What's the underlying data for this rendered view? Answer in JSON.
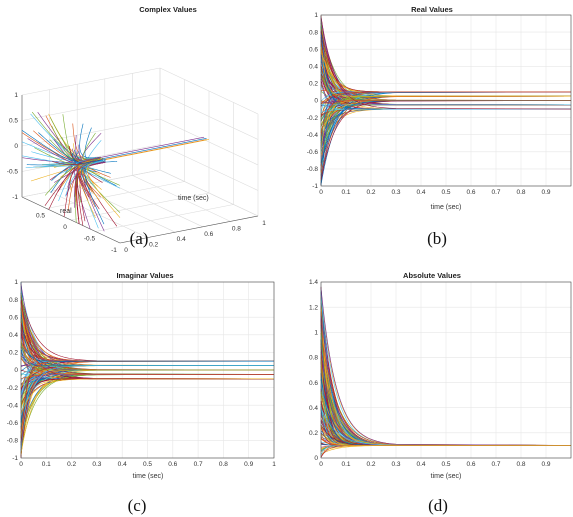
{
  "palette": [
    "#0072BD",
    "#D95319",
    "#EDB120",
    "#7E2F8E",
    "#77AC30",
    "#4DBEEE",
    "#A2142F"
  ],
  "chart_data": [
    {
      "id": "a",
      "type": "line3d",
      "title": "Complex Values",
      "caption": "(a)",
      "xlabel": "real",
      "ylabel": "time (sec)",
      "zlabel": "",
      "xlim": [
        -1,
        1
      ],
      "ylim": [
        0,
        1
      ],
      "zlim": [
        -1,
        1
      ],
      "xticks": [
        "0.5",
        "0",
        "-0.5",
        "-1"
      ],
      "yticks": [
        "0",
        "0.2",
        "0.4",
        "0.6",
        "0.8",
        "1"
      ],
      "zticks": [
        "1",
        "0.5",
        "0",
        "-0.5",
        "-1"
      ],
      "series_count": 120,
      "steady_state_values": [
        0.1,
        0.1,
        0.05,
        0.0
      ],
      "decay_time_constant_sec": 0.03
    },
    {
      "id": "b",
      "type": "line",
      "title": "Real Values",
      "caption": "(b)",
      "xlabel": "time (sec)",
      "ylabel": "",
      "xlim": [
        0,
        1
      ],
      "ylim": [
        -1,
        1
      ],
      "xticks": [
        "0",
        "0.1",
        "0.2",
        "0.3",
        "0.4",
        "0.5",
        "0.6",
        "0.7",
        "0.8",
        "0.9"
      ],
      "yticks": [
        "1",
        "0.8",
        "0.6",
        "0.4",
        "0.2",
        "0",
        "-0.2",
        "-0.4",
        "-0.6",
        "-0.8",
        "-1"
      ],
      "grid": true,
      "series_count": 150,
      "initial_range": [
        -1,
        1
      ],
      "steady_state_values": [
        0.1,
        0.05,
        0.0,
        -0.05,
        -0.1
      ],
      "decay_time_constant_sec": 0.03
    },
    {
      "id": "c",
      "type": "line",
      "title": "Imaginar Values",
      "caption": "(c)",
      "xlabel": "time (sec)",
      "ylabel": "",
      "xlim": [
        0,
        1
      ],
      "ylim": [
        -1,
        1
      ],
      "xticks": [
        "0",
        "0.1",
        "0.2",
        "0.3",
        "0.4",
        "0.5",
        "0.6",
        "0.7",
        "0.8",
        "0.9",
        "1"
      ],
      "yticks": [
        "1",
        "0.8",
        "0.6",
        "0.4",
        "0.2",
        "0",
        "-0.2",
        "-0.4",
        "-0.6",
        "-0.8",
        "-1"
      ],
      "grid": true,
      "series_count": 150,
      "initial_range": [
        -1,
        1
      ],
      "steady_state_values": [
        0.1,
        0.05,
        0.0,
        -0.05,
        -0.1
      ],
      "decay_time_constant_sec": 0.03
    },
    {
      "id": "d",
      "type": "line",
      "title": "Absolute Values",
      "caption": "(d)",
      "xlabel": "time (sec)",
      "ylabel": "",
      "xlim": [
        0,
        1
      ],
      "ylim": [
        0,
        1.4
      ],
      "xticks": [
        "0",
        "0.1",
        "0.2",
        "0.3",
        "0.4",
        "0.5",
        "0.6",
        "0.7",
        "0.8",
        "0.9"
      ],
      "yticks": [
        "1.4",
        "1.2",
        "1",
        "0.8",
        "0.6",
        "0.4",
        "0.2",
        "0"
      ],
      "grid": true,
      "series_count": 150,
      "initial_range": [
        0,
        1.4
      ],
      "steady_state_values": [
        0.1
      ],
      "decay_time_constant_sec": 0.03
    }
  ]
}
